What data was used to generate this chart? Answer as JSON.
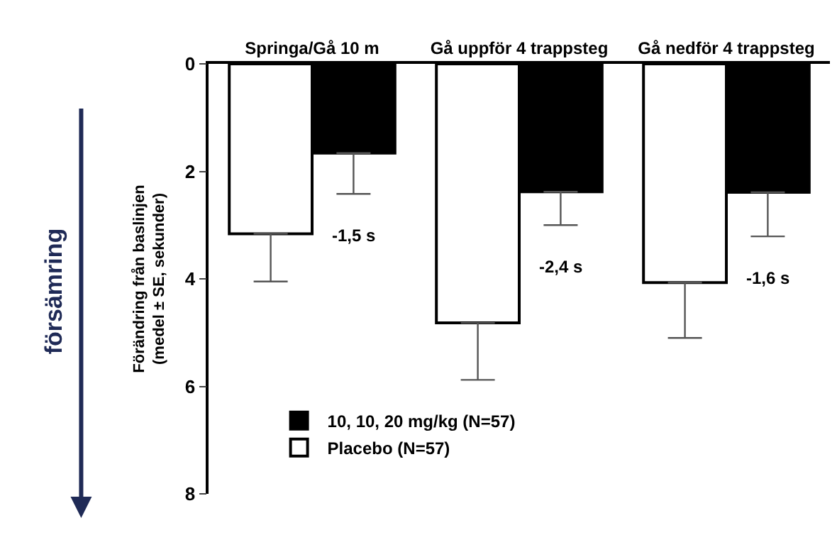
{
  "chart_data": {
    "type": "bar",
    "categories": [
      "Springa/Gå 10 m",
      "Gå uppför 4 trappsteg",
      "Gå nedför 4 trappsteg"
    ],
    "ylabel": "Förändring från baslinjen\n(medel ± SE, sekunder)",
    "ylim": [
      8,
      0
    ],
    "yticks": [
      0,
      2,
      4,
      6,
      8
    ],
    "legend": "bottom left",
    "series": [
      {
        "name": "Placebo (N=57)",
        "color": "#ffffff",
        "values": [
          3.16,
          4.82,
          4.07
        ],
        "errors": [
          [
            3.16,
            4.05
          ],
          [
            4.82,
            5.88
          ],
          [
            4.07,
            5.1
          ]
        ]
      },
      {
        "name": "10, 10, 20 mg/kg (N=57)",
        "color": "#000000",
        "values": [
          1.66,
          2.38,
          2.39
        ],
        "errors": [
          [
            1.66,
            2.42
          ],
          [
            2.38,
            3.0
          ],
          [
            2.39,
            3.21
          ]
        ]
      }
    ],
    "annotations": [
      {
        "text": "-1,5 s",
        "x": "Springa/Gå 10 m",
        "y": 2.95
      },
      {
        "text": "-2,4 s",
        "x": "Gå uppför 4 trappsteg",
        "y": 3.53
      },
      {
        "text": "-1,6 s",
        "x": "Gå nedför 4 trappsteg",
        "y": 3.75
      },
      "försämring"
    ]
  }
}
